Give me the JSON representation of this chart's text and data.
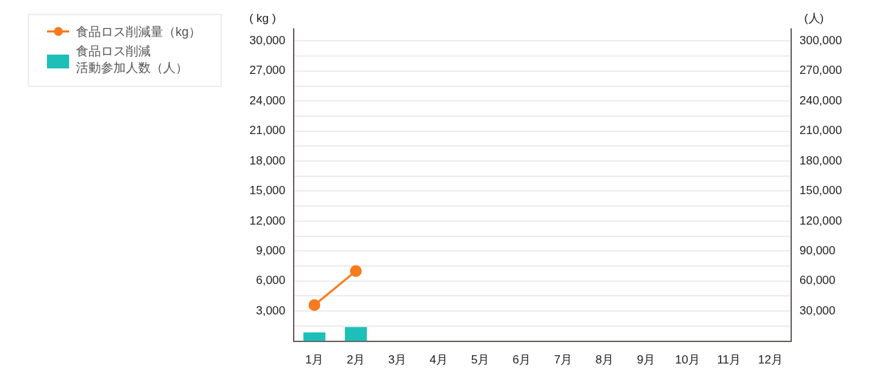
{
  "chart_data": {
    "type": "bar",
    "categories": [
      "1月",
      "2月",
      "3月",
      "4月",
      "5月",
      "6月",
      "7月",
      "8月",
      "9月",
      "10月",
      "11月",
      "12月"
    ],
    "series": [
      {
        "name": "食品ロス削減量（kg）",
        "type": "line",
        "color": "#f97b1f",
        "values": [
          3600,
          7000,
          null,
          null,
          null,
          null,
          null,
          null,
          null,
          null,
          null,
          null
        ]
      },
      {
        "name": "食品ロス削減活動参加人数（人）",
        "axis": "y2",
        "color": "#1dc0b8",
        "values": [
          8700,
          14000,
          null,
          null,
          null,
          null,
          null,
          null,
          null,
          null,
          null,
          null
        ]
      }
    ],
    "ylabel": "( kg )",
    "y2label": "(人)",
    "ylim": [
      0,
      31200
    ],
    "yticks": [
      {
        "value": 1500,
        "label": null
      },
      {
        "value": 3000,
        "label": "3,000"
      },
      {
        "value": 4500,
        "label": null
      },
      {
        "value": 6000,
        "label": "6,000"
      },
      {
        "value": 7500,
        "label": null
      },
      {
        "value": 9000,
        "label": "9,000"
      },
      {
        "value": 10500,
        "label": null
      },
      {
        "value": 12000,
        "label": "12,000"
      },
      {
        "value": 13500,
        "label": null
      },
      {
        "value": 15000,
        "label": "15,000"
      },
      {
        "value": 16500,
        "label": null
      },
      {
        "value": 18000,
        "label": "18,000"
      },
      {
        "value": 19500,
        "label": null
      },
      {
        "value": 21000,
        "label": "21,000"
      },
      {
        "value": 22500,
        "label": null
      },
      {
        "value": 24000,
        "label": "24,000"
      },
      {
        "value": 25500,
        "label": null
      },
      {
        "value": 27000,
        "label": "27,000"
      },
      {
        "value": 28500,
        "label": null
      },
      {
        "value": 30000,
        "label": "30,000"
      }
    ],
    "y2lim": [
      0,
      312000
    ],
    "y2ticks": [
      {
        "value": 30000,
        "label": "30,000"
      },
      {
        "value": 60000,
        "label": "60,000"
      },
      {
        "value": 90000,
        "label": "90,000"
      },
      {
        "value": 120000,
        "label": "120,000"
      },
      {
        "value": 150000,
        "label": "150,000"
      },
      {
        "value": 180000,
        "label": "180,000"
      },
      {
        "value": 210000,
        "label": "210,000"
      },
      {
        "value": 240000,
        "label": "240,000"
      },
      {
        "value": 270000,
        "label": "270,000"
      },
      {
        "value": 300000,
        "label": "300,000"
      }
    ],
    "grid": "y",
    "legend": "top left",
    "marker": "circle",
    "line_style": "solid"
  }
}
